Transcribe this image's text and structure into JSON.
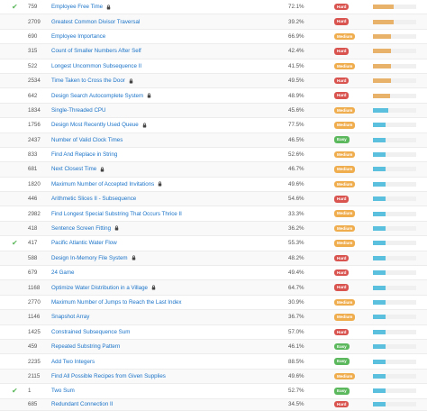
{
  "colors": {
    "hard": "#d9534f",
    "medium": "#f0ad4e",
    "easy": "#5cb85c",
    "freq_high": "#e9b26a",
    "freq_low": "#5bc0de",
    "title": "#1a73c8"
  },
  "problems": [
    {
      "solved": true,
      "num": "759",
      "title": "Employee Free Time",
      "locked": true,
      "acceptance": "72.1%",
      "difficulty": "Hard",
      "frequency": 0.47
    },
    {
      "solved": false,
      "num": "2709",
      "title": "Greatest Common Divisor Traversal",
      "locked": false,
      "acceptance": "39.2%",
      "difficulty": "Hard",
      "frequency": 0.47
    },
    {
      "solved": false,
      "num": "690",
      "title": "Employee Importance",
      "locked": false,
      "acceptance": "66.9%",
      "difficulty": "Medium",
      "frequency": 0.42
    },
    {
      "solved": false,
      "num": "315",
      "title": "Count of Smaller Numbers After Self",
      "locked": false,
      "acceptance": "42.4%",
      "difficulty": "Hard",
      "frequency": 0.42
    },
    {
      "solved": false,
      "num": "522",
      "title": "Longest Uncommon Subsequence II",
      "locked": false,
      "acceptance": "41.5%",
      "difficulty": "Medium",
      "frequency": 0.42
    },
    {
      "solved": false,
      "num": "2534",
      "title": "Time Taken to Cross the Door",
      "locked": true,
      "acceptance": "49.5%",
      "difficulty": "Hard",
      "frequency": 0.42
    },
    {
      "solved": false,
      "num": "642",
      "title": "Design Search Autocomplete System",
      "locked": true,
      "acceptance": "48.9%",
      "difficulty": "Hard",
      "frequency": 0.4
    },
    {
      "solved": false,
      "num": "1834",
      "title": "Single-Threaded CPU",
      "locked": false,
      "acceptance": "45.6%",
      "difficulty": "Medium",
      "frequency": 0.35
    },
    {
      "solved": false,
      "num": "1756",
      "title": "Design Most Recently Used Queue",
      "locked": true,
      "acceptance": "77.5%",
      "difficulty": "Medium",
      "frequency": 0.3
    },
    {
      "solved": false,
      "num": "2437",
      "title": "Number of Valid Clock Times",
      "locked": false,
      "acceptance": "46.5%",
      "difficulty": "Easy",
      "frequency": 0.3
    },
    {
      "solved": false,
      "num": "833",
      "title": "Find And Replace in String",
      "locked": false,
      "acceptance": "52.6%",
      "difficulty": "Medium",
      "frequency": 0.3
    },
    {
      "solved": false,
      "num": "681",
      "title": "Next Closest Time",
      "locked": true,
      "acceptance": "46.7%",
      "difficulty": "Medium",
      "frequency": 0.3
    },
    {
      "solved": false,
      "num": "1820",
      "title": "Maximum Number of Accepted Invitations",
      "locked": true,
      "acceptance": "49.6%",
      "difficulty": "Medium",
      "frequency": 0.3
    },
    {
      "solved": false,
      "num": "446",
      "title": "Arithmetic Slices II - Subsequence",
      "locked": false,
      "acceptance": "54.6%",
      "difficulty": "Hard",
      "frequency": 0.3
    },
    {
      "solved": false,
      "num": "2982",
      "title": "Find Longest Special Substring That Occurs Thrice II",
      "locked": false,
      "acceptance": "33.3%",
      "difficulty": "Medium",
      "frequency": 0.3
    },
    {
      "solved": false,
      "num": "418",
      "title": "Sentence Screen Fitting",
      "locked": true,
      "acceptance": "36.2%",
      "difficulty": "Medium",
      "frequency": 0.3
    },
    {
      "solved": true,
      "num": "417",
      "title": "Pacific Atlantic Water Flow",
      "locked": false,
      "acceptance": "55.3%",
      "difficulty": "Medium",
      "frequency": 0.3
    },
    {
      "solved": false,
      "num": "588",
      "title": "Design In-Memory File System",
      "locked": true,
      "acceptance": "48.2%",
      "difficulty": "Hard",
      "frequency": 0.3
    },
    {
      "solved": false,
      "num": "679",
      "title": "24 Game",
      "locked": false,
      "acceptance": "49.4%",
      "difficulty": "Hard",
      "frequency": 0.3
    },
    {
      "solved": false,
      "num": "1168",
      "title": "Optimize Water Distribution in a Village",
      "locked": true,
      "acceptance": "64.7%",
      "difficulty": "Hard",
      "frequency": 0.3
    },
    {
      "solved": false,
      "num": "2770",
      "title": "Maximum Number of Jumps to Reach the Last Index",
      "locked": false,
      "acceptance": "30.9%",
      "difficulty": "Medium",
      "frequency": 0.3
    },
    {
      "solved": false,
      "num": "1146",
      "title": "Snapshot Array",
      "locked": false,
      "acceptance": "36.7%",
      "difficulty": "Medium",
      "frequency": 0.3
    },
    {
      "solved": false,
      "num": "1425",
      "title": "Constrained Subsequence Sum",
      "locked": false,
      "acceptance": "57.0%",
      "difficulty": "Hard",
      "frequency": 0.3
    },
    {
      "solved": false,
      "num": "459",
      "title": "Repeated Substring Pattern",
      "locked": false,
      "acceptance": "46.1%",
      "difficulty": "Easy",
      "frequency": 0.3
    },
    {
      "solved": false,
      "num": "2235",
      "title": "Add Two Integers",
      "locked": false,
      "acceptance": "88.5%",
      "difficulty": "Easy",
      "frequency": 0.3
    },
    {
      "solved": false,
      "num": "2115",
      "title": "Find All Possible Recipes from Given Supplies",
      "locked": false,
      "acceptance": "49.6%",
      "difficulty": "Medium",
      "frequency": 0.3
    },
    {
      "solved": true,
      "num": "1",
      "title": "Two Sum",
      "locked": false,
      "acceptance": "52.7%",
      "difficulty": "Easy",
      "frequency": 0.3
    },
    {
      "solved": false,
      "num": "685",
      "title": "Redundant Connection II",
      "locked": false,
      "acceptance": "34.5%",
      "difficulty": "Hard",
      "frequency": 0.3
    }
  ]
}
